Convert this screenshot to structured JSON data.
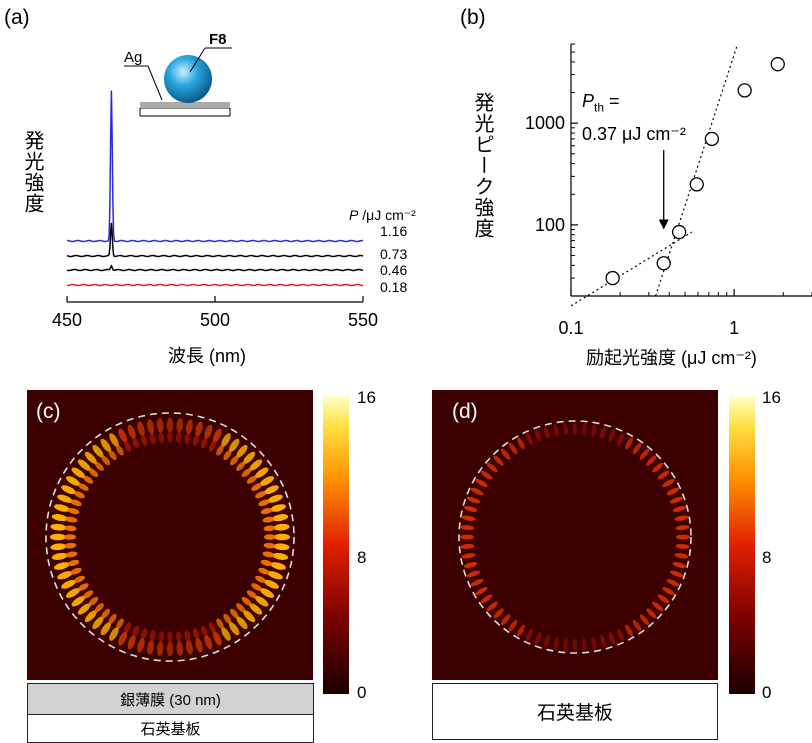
{
  "panels": {
    "a": {
      "label": "(a)"
    },
    "b": {
      "label": "(b)"
    },
    "c": {
      "label": "(c)"
    },
    "d": {
      "label": "(d)"
    }
  },
  "chart_data": [
    {
      "type": "line",
      "id": "a",
      "xlabel": "波長 (nm)",
      "ylabel": "発光強度",
      "xlim": [
        450,
        550
      ],
      "xticks": [
        "450",
        "500",
        "550"
      ],
      "legend_title_italic": "P",
      "legend_title_rest": " /μJ cm⁻²",
      "inset": {
        "ag_label": "Ag",
        "particle_label": "F8"
      },
      "series": [
        {
          "name": "1.16",
          "color": "#2a2adf",
          "baseline": 1.16,
          "peak_at": 465,
          "peak_height": 1.0
        },
        {
          "name": "0.73",
          "color": "#000000",
          "baseline": 0.73,
          "peak_at": 465,
          "peak_height": 0.22
        },
        {
          "name": "0.46",
          "color": "#000000",
          "baseline": 0.46,
          "peak_at": 465,
          "peak_height": 0.03
        },
        {
          "name": "0.18",
          "color": "#e02020",
          "baseline": 0.18,
          "peak_at": 465,
          "peak_height": 0.0
        }
      ]
    },
    {
      "type": "scatter",
      "id": "b",
      "xlabel": "励起光強度 (μJ cm⁻²)",
      "ylabel": "発光ピーク強度",
      "xscale": "log",
      "yscale": "log",
      "xlim": [
        0.1,
        3
      ],
      "ylim": [
        20,
        6000
      ],
      "xticks": [
        {
          "v": 0.1,
          "t": "0.1"
        },
        {
          "v": 1,
          "t": "1"
        }
      ],
      "yticks": [
        {
          "v": 100,
          "t": "100"
        },
        {
          "v": 1000,
          "t": "1000"
        }
      ],
      "points": [
        {
          "x": 0.18,
          "y": 30
        },
        {
          "x": 0.37,
          "y": 42
        },
        {
          "x": 0.46,
          "y": 85
        },
        {
          "x": 0.59,
          "y": 250
        },
        {
          "x": 0.73,
          "y": 700
        },
        {
          "x": 1.16,
          "y": 2100
        },
        {
          "x": 1.85,
          "y": 3800
        }
      ],
      "fit_lines": [
        {
          "from": [
            0.1,
            16
          ],
          "to": [
            0.55,
            85
          ]
        },
        {
          "from": [
            0.33,
            20
          ],
          "to": [
            1.05,
            6000
          ]
        }
      ],
      "annotation_line1_italic": "P",
      "annotation_line1_sub": "th",
      "annotation_line1_rest": " =",
      "annotation_line2": "0.37 μJ cm⁻²",
      "arrow_target": {
        "x": 0.37,
        "y": 90
      }
    },
    {
      "type": "heatmap",
      "id": "c",
      "colorbar_ticks": [
        "16",
        "8",
        "0"
      ],
      "colorbar_range": [
        0,
        16
      ],
      "substrate_top": "銀薄膜 (30 nm)",
      "substrate_bottom": "石英基板"
    },
    {
      "type": "heatmap",
      "id": "d",
      "colorbar_ticks": [
        "16",
        "8",
        "0"
      ],
      "colorbar_range": [
        0,
        16
      ],
      "substrate": "石英基板"
    }
  ]
}
